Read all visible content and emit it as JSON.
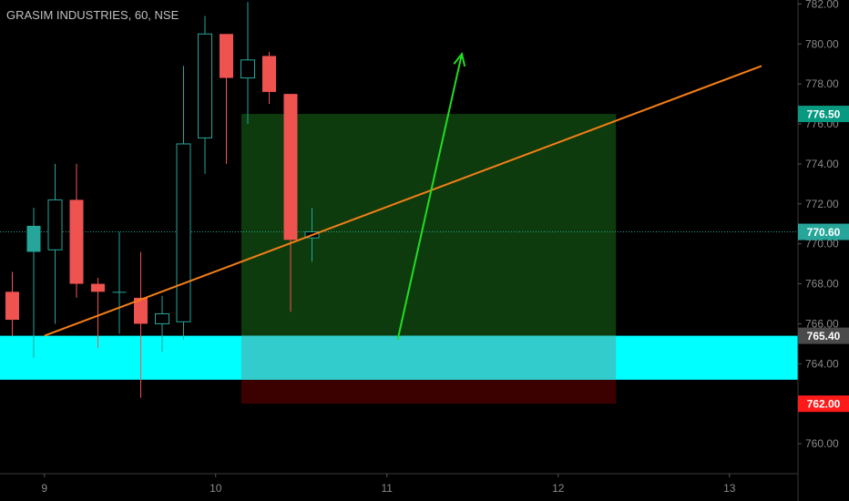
{
  "header": {
    "title": "GRASIM INDUSTRIES, 60, NSE"
  },
  "colors": {
    "background": "#000000",
    "up": "#26a69a",
    "down": "#ef5350",
    "trendline": "#f57f17",
    "arrow": "#22dd22",
    "zone": "#00ffff",
    "target_zone": "#0d3b0d",
    "stop_zone": "#3b0000",
    "current_price": "#26a69a",
    "grid_text": "#8a8a8a"
  },
  "chart_data": {
    "type": "candlestick",
    "symbol": "GRASIM INDUSTRIES",
    "interval": "60",
    "exchange": "NSE",
    "ylim": [
      758.5,
      782.2
    ],
    "y_ticks": [
      760,
      762,
      764,
      766,
      768,
      770,
      772,
      774,
      776,
      778,
      780,
      782
    ],
    "y_tick_labels": [
      "760.00",
      "762.00",
      "764.00",
      "766.00",
      "768.00",
      "770.00",
      "772.00",
      "774.00",
      "776.00",
      "778.00",
      "780.00",
      "782.00"
    ],
    "x_ticks": [
      {
        "label": "9",
        "index": 1.5
      },
      {
        "label": "10",
        "index": 9.5
      },
      {
        "label": "11",
        "index": 17.5
      },
      {
        "label": "12",
        "index": 25.5
      },
      {
        "label": "13",
        "index": 33.5
      }
    ],
    "xlim": [
      0,
      37
    ],
    "candles": [
      {
        "open": 767.6,
        "high": 768.6,
        "low": 765.4,
        "close": 766.2
      },
      {
        "open": 769.6,
        "high": 771.8,
        "low": 764.3,
        "close": 770.9
      },
      {
        "open": 769.7,
        "high": 774.0,
        "low": 766.0,
        "close": 772.2
      },
      {
        "open": 772.2,
        "high": 774.0,
        "low": 767.3,
        "close": 768.0
      },
      {
        "open": 768.0,
        "high": 768.3,
        "low": 764.8,
        "close": 767.6
      },
      {
        "open": 767.6,
        "high": 770.6,
        "low": 765.5,
        "close": 767.6
      },
      {
        "open": 767.3,
        "high": 769.6,
        "low": 762.3,
        "close": 766.0
      },
      {
        "open": 766.0,
        "high": 767.4,
        "low": 764.6,
        "close": 766.5
      },
      {
        "open": 766.1,
        "high": 778.9,
        "low": 765.2,
        "close": 775.0
      },
      {
        "open": 775.3,
        "high": 781.4,
        "low": 773.5,
        "close": 780.5
      },
      {
        "open": 780.5,
        "high": 780.5,
        "low": 774.0,
        "close": 778.3
      },
      {
        "open": 778.3,
        "high": 782.1,
        "low": 776.0,
        "close": 779.2
      },
      {
        "open": 779.4,
        "high": 779.6,
        "low": 777.0,
        "close": 777.6
      },
      {
        "open": 777.5,
        "high": 777.5,
        "low": 766.6,
        "close": 770.2
      },
      {
        "open": 770.3,
        "high": 771.8,
        "low": 769.1,
        "close": 770.6
      }
    ],
    "price_tags": [
      {
        "label": "776.50",
        "value": 776.5,
        "color": "#089981"
      },
      {
        "label": "770.60",
        "value": 770.6,
        "color": "#26a69a"
      },
      {
        "label": "765.40",
        "value": 765.4,
        "color": "#4a4a4a"
      },
      {
        "label": "762.00",
        "value": 762.0,
        "color": "#ff1a1a"
      }
    ],
    "current_price": 770.6,
    "support_zone": {
      "from": 763.2,
      "to": 765.4
    },
    "position": {
      "index_from": 10.7,
      "index_to": 28.2,
      "entry": 765.4,
      "target": 776.5,
      "stop": 762.0
    },
    "trendline": {
      "from": {
        "index": 1.5,
        "value": 765.4
      },
      "to": {
        "index": 35.0,
        "value": 778.9
      }
    },
    "arrow": {
      "from": {
        "index": 18.0,
        "value": 765.2
      },
      "to": {
        "index": 21.0,
        "value": 779.5
      }
    }
  }
}
